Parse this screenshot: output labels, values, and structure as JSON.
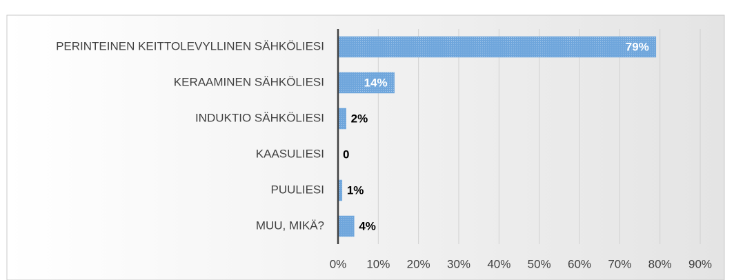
{
  "chart_data": {
    "type": "bar",
    "orientation": "horizontal",
    "categories": [
      "PERINTEINEN KEITTOLEVYLLINEN SÄHKÖLIESI",
      "KERAAMINEN SÄHKÖLIESI",
      "INDUKTIO SÄHKÖLIESI",
      "KAASULIESI",
      "PUULIESI",
      "MUU, MIKÄ?"
    ],
    "values": [
      79,
      14,
      2,
      0,
      1,
      4
    ],
    "value_labels": [
      "79%",
      "14%",
      "2%",
      "0",
      "1%",
      "4%"
    ],
    "color": "#6fa6dc",
    "xlim": [
      0,
      90
    ],
    "xticks": [
      {
        "value": 0,
        "label": "0%"
      },
      {
        "value": 10,
        "label": "10%"
      },
      {
        "value": 20,
        "label": "20%"
      },
      {
        "value": 30,
        "label": "30%"
      },
      {
        "value": 40,
        "label": "40%"
      },
      {
        "value": 50,
        "label": "50%"
      },
      {
        "value": 60,
        "label": "60%"
      },
      {
        "value": 70,
        "label": "70%"
      },
      {
        "value": 80,
        "label": "80%"
      },
      {
        "value": 90,
        "label": "90%"
      }
    ],
    "grid": true
  }
}
